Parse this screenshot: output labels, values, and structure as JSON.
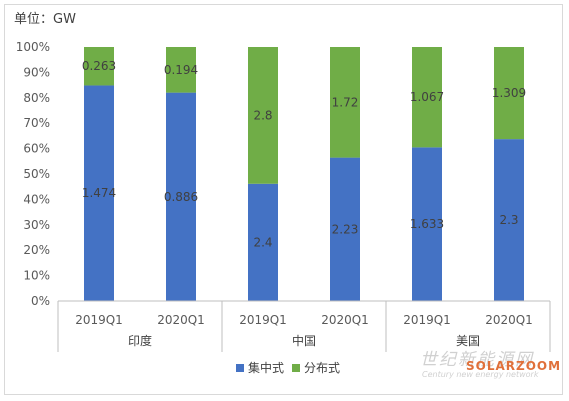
{
  "unit_label": "单位：GW",
  "colors": {
    "centralized": "#4472c4",
    "distributed": "#70ad47",
    "axis": "#bfbfbf"
  },
  "chart_data": {
    "type": "bar",
    "stacked": "percent",
    "ylim": [
      0,
      100
    ],
    "yticks": [
      "0%",
      "10%",
      "20%",
      "30%",
      "40%",
      "50%",
      "60%",
      "70%",
      "80%",
      "90%",
      "100%"
    ],
    "categories": [
      "2019Q1",
      "2020Q1",
      "2019Q1",
      "2020Q1",
      "2019Q1",
      "2020Q1"
    ],
    "groups": [
      {
        "name": "印度",
        "span": [
          0,
          1
        ]
      },
      {
        "name": "中国",
        "span": [
          2,
          3
        ]
      },
      {
        "name": "美国",
        "span": [
          4,
          5
        ]
      }
    ],
    "series": [
      {
        "name": "集中式",
        "values": [
          1.474,
          0.886,
          2.4,
          2.23,
          1.633,
          2.3
        ],
        "labels": [
          "1.474",
          "0.886",
          "2.4",
          "2.23",
          "1.633",
          "2.3"
        ]
      },
      {
        "name": "分布式",
        "values": [
          0.263,
          0.194,
          2.8,
          1.72,
          1.067,
          1.309
        ],
        "labels": [
          "0.263",
          "0.194",
          "2.8",
          "1.72",
          "1.067",
          "1.309"
        ]
      }
    ],
    "legend_position": "bottom",
    "grid": false
  },
  "watermark": {
    "cn": "世纪新能源网",
    "en": "Century new energy network",
    "brand": "SOLARZOOM"
  }
}
